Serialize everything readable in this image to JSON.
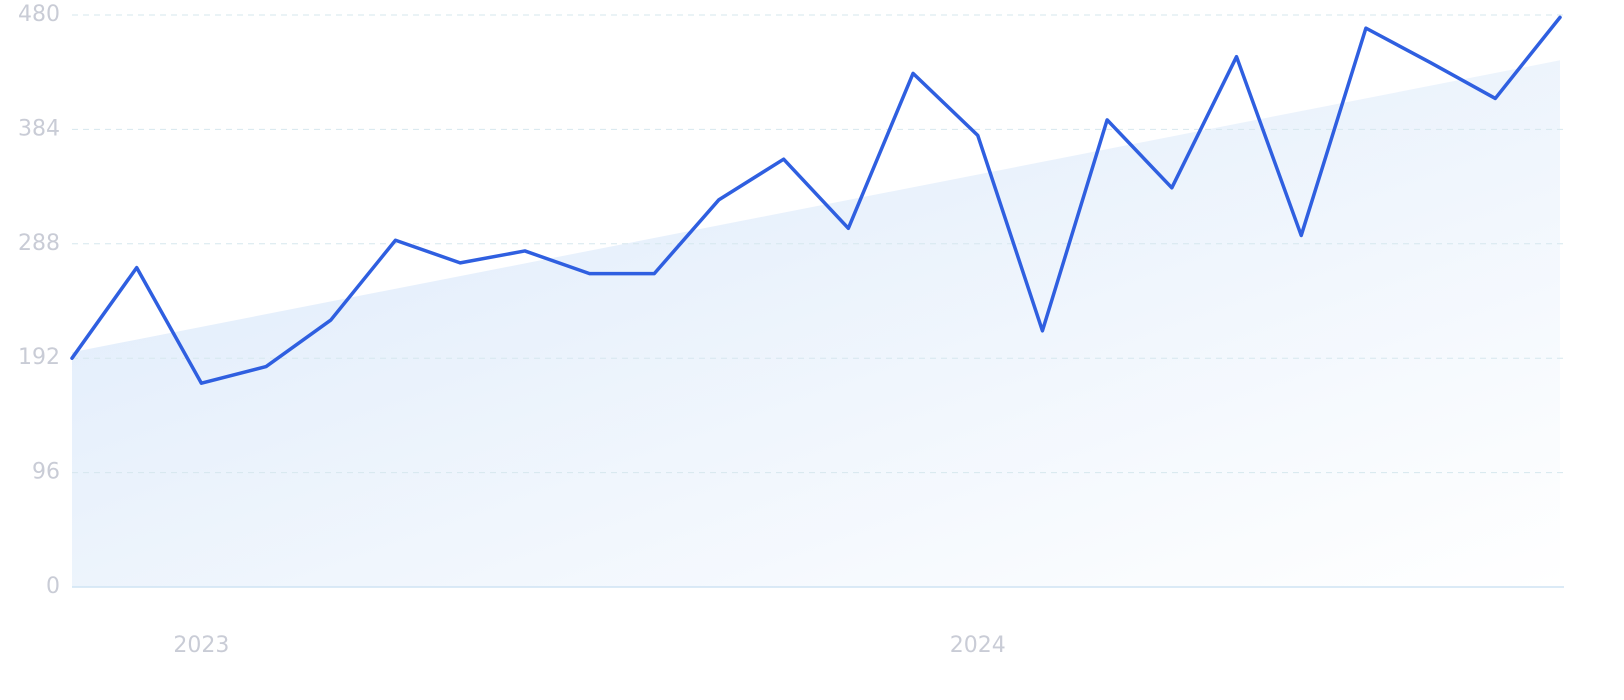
{
  "chart_data": {
    "type": "line",
    "categories": [
      null,
      null,
      "2023",
      null,
      null,
      null,
      null,
      null,
      null,
      null,
      null,
      null,
      null,
      null,
      "2024",
      null,
      null,
      null,
      null,
      null,
      null,
      null,
      null,
      null
    ],
    "series": [
      {
        "color": "#2f5fe0",
        "values": [
          192,
          268,
          171,
          185,
          224,
          291,
          272,
          282,
          263,
          263,
          325,
          359,
          301,
          431,
          379,
          215,
          392,
          335,
          445,
          295,
          469,
          440,
          410,
          478
        ]
      }
    ],
    "trend": {
      "color": "#dbe9fa",
      "values": [
        197,
        442
      ]
    },
    "ylim": [
      0,
      480
    ],
    "yticks": [
      0,
      96,
      192,
      288,
      384,
      480
    ],
    "grid": true
  }
}
